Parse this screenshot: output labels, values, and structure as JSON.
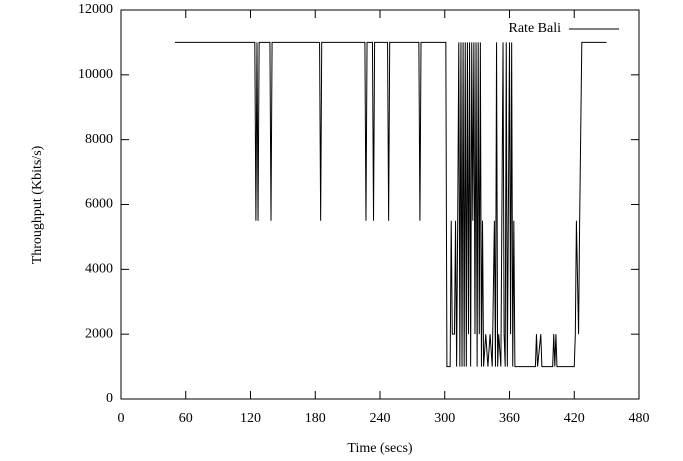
{
  "chart_data": {
    "type": "line",
    "x_label": "Time (secs)",
    "y_label": "Throughput (Kbits/s)",
    "x": [
      50,
      124,
      125,
      126,
      127,
      128,
      138,
      139,
      140,
      184,
      185,
      186,
      226,
      227,
      228,
      233,
      234,
      235,
      247,
      248,
      249,
      276,
      277,
      278,
      301,
      302,
      305,
      306,
      307,
      309,
      310,
      311,
      312,
      313,
      314,
      315,
      316,
      317,
      318,
      319,
      320,
      321,
      322,
      323,
      324,
      325,
      326,
      327,
      328,
      329,
      330,
      331,
      332,
      333,
      334,
      335,
      336,
      338,
      340,
      342,
      344,
      346,
      347,
      348,
      349,
      350,
      352,
      354,
      355,
      356,
      357,
      358,
      360,
      361,
      362,
      363,
      364,
      365,
      384,
      385,
      386,
      389,
      390,
      400,
      401,
      402,
      403,
      404,
      420,
      421,
      422,
      424,
      425,
      427,
      450
    ],
    "series": [
      {
        "name": "Rate Bali",
        "color": "#000000",
        "values": [
          11000,
          11000,
          5500,
          11000,
          5500,
          11000,
          11000,
          5500,
          11000,
          11000,
          5500,
          11000,
          11000,
          5500,
          11000,
          11000,
          5500,
          11000,
          11000,
          5500,
          11000,
          11000,
          5500,
          11000,
          11000,
          1000,
          1000,
          5500,
          2000,
          2000,
          5500,
          1000,
          5500,
          11000,
          1000,
          11000,
          1000,
          11000,
          1000,
          11000,
          1000,
          11000,
          2000,
          11000,
          1000,
          11000,
          5500,
          11000,
          2000,
          11000,
          1000,
          11000,
          2000,
          11000,
          1000,
          5500,
          1000,
          2000,
          1000,
          2000,
          1000,
          5500,
          1000,
          11000,
          1000,
          2000,
          1000,
          11000,
          2000,
          1000,
          11000,
          1000,
          11000,
          2000,
          11000,
          1000,
          5500,
          1000,
          1000,
          2000,
          1000,
          2000,
          1000,
          1000,
          2000,
          1000,
          2000,
          1000,
          1000,
          2000,
          5500,
          2000,
          5500,
          11000,
          11000
        ]
      }
    ],
    "xlim": [
      0,
      480
    ],
    "xticks": [
      0,
      60,
      120,
      180,
      240,
      300,
      360,
      420,
      480
    ],
    "ylim": [
      0,
      12000
    ],
    "yticks": [
      0,
      2000,
      4000,
      6000,
      8000,
      10000,
      12000
    ],
    "legend": "top-right"
  }
}
